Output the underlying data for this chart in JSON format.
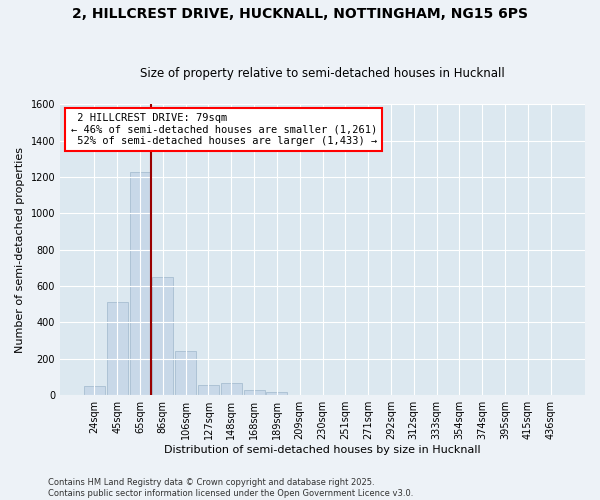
{
  "title_line1": "2, HILLCREST DRIVE, HUCKNALL, NOTTINGHAM, NG15 6PS",
  "title_line2": "Size of property relative to semi-detached houses in Hucknall",
  "xlabel": "Distribution of semi-detached houses by size in Hucknall",
  "ylabel": "Number of semi-detached properties",
  "categories": [
    "24sqm",
    "45sqm",
    "65sqm",
    "86sqm",
    "106sqm",
    "127sqm",
    "148sqm",
    "168sqm",
    "189sqm",
    "209sqm",
    "230sqm",
    "251sqm",
    "271sqm",
    "292sqm",
    "312sqm",
    "333sqm",
    "354sqm",
    "374sqm",
    "395sqm",
    "415sqm",
    "436sqm"
  ],
  "values": [
    50,
    510,
    1225,
    650,
    245,
    55,
    65,
    30,
    20,
    0,
    0,
    0,
    0,
    0,
    0,
    0,
    0,
    0,
    0,
    0,
    0
  ],
  "bar_color": "#c8d8e8",
  "bar_edge_color": "#a0b8cc",
  "property_label": "2 HILLCREST DRIVE: 79sqm",
  "pct_smaller": 46,
  "num_smaller": 1261,
  "pct_larger": 52,
  "num_larger": 1433,
  "vline_bin": 2,
  "ylim": [
    0,
    1600
  ],
  "yticks": [
    0,
    200,
    400,
    600,
    800,
    1000,
    1200,
    1400,
    1600
  ],
  "background_color": "#edf2f7",
  "plot_bg_color": "#dce8f0",
  "grid_color": "#ffffff",
  "footnote_line1": "Contains HM Land Registry data © Crown copyright and database right 2025.",
  "footnote_line2": "Contains public sector information licensed under the Open Government Licence v3.0.",
  "title1_fontsize": 10,
  "title2_fontsize": 8.5,
  "axis_label_fontsize": 8,
  "tick_fontsize": 7,
  "annot_fontsize": 7.5
}
